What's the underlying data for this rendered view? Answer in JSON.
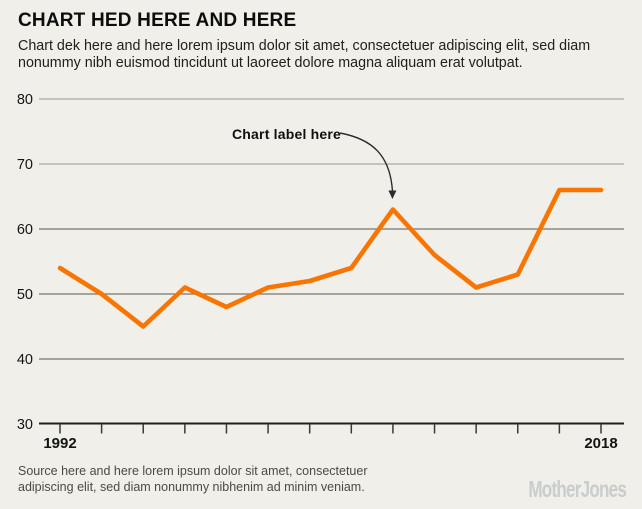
{
  "header": {
    "title": "CHART HED HERE AND HERE",
    "dek_lines": [
      "Chart dek here and here lorem ipsum dolor sit amet, consectetuer adipiscing elit, sed diam",
      "nonummy nibh euismod tincidunt ut laoreet dolore magna aliquam erat volutpat."
    ]
  },
  "annotation": {
    "label": "Chart label here"
  },
  "source_lines": [
    "Source here and here lorem ipsum dolor sit amet, consectetuer",
    "adipiscing elit, sed diam nonummy nibhenim ad minim veniam."
  ],
  "branding": {
    "logo_text": "MotherJones"
  },
  "colors": {
    "background": "#f0efe9",
    "line": "#f97502",
    "grid_light": "#b6b6af",
    "grid_dark": "#76766f",
    "axis": "#1f1f1b",
    "tick": "#3b3b35",
    "axis_label": "#141414",
    "arrow": "#2b2b2b"
  },
  "chart_data": {
    "type": "line",
    "title": "CHART HED HERE AND HERE",
    "x": [
      1992,
      1994,
      1996,
      1998,
      2000,
      2002,
      2004,
      2006,
      2008,
      2010,
      2012,
      2014,
      2016,
      2018
    ],
    "values": [
      54,
      50,
      45,
      51,
      48,
      51,
      52,
      54,
      63,
      56,
      51,
      53,
      66,
      66
    ],
    "xlabel": "",
    "ylabel": "",
    "ylim": [
      30,
      80
    ],
    "yticks": [
      30,
      40,
      50,
      60,
      70,
      80
    ],
    "xticks": [
      1992,
      1994,
      1996,
      1998,
      2000,
      2002,
      2004,
      2006,
      2008,
      2010,
      2012,
      2014,
      2016,
      2018
    ],
    "labeled_xticks": [
      1992,
      2018
    ],
    "grid": true,
    "legend_position": "none",
    "annotation": {
      "text": "Chart label here",
      "target_x": 2008,
      "target_y": 63
    }
  }
}
